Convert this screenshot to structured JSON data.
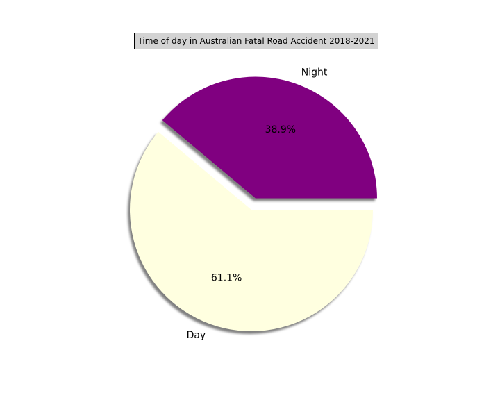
{
  "chart_data": {
    "type": "pie",
    "title": "Time of day in Australian Fatal Road Accident 2018-2021",
    "slices": [
      {
        "label": "Night",
        "value": 38.9,
        "pct_label": "38.9%",
        "color": "#800080",
        "exploded": true
      },
      {
        "label": "Day",
        "value": 61.1,
        "pct_label": "61.1%",
        "color": "#ffffe0",
        "exploded": false
      }
    ],
    "shadow": true,
    "start_angle_deg": 0,
    "direction": "counterclockwise"
  }
}
